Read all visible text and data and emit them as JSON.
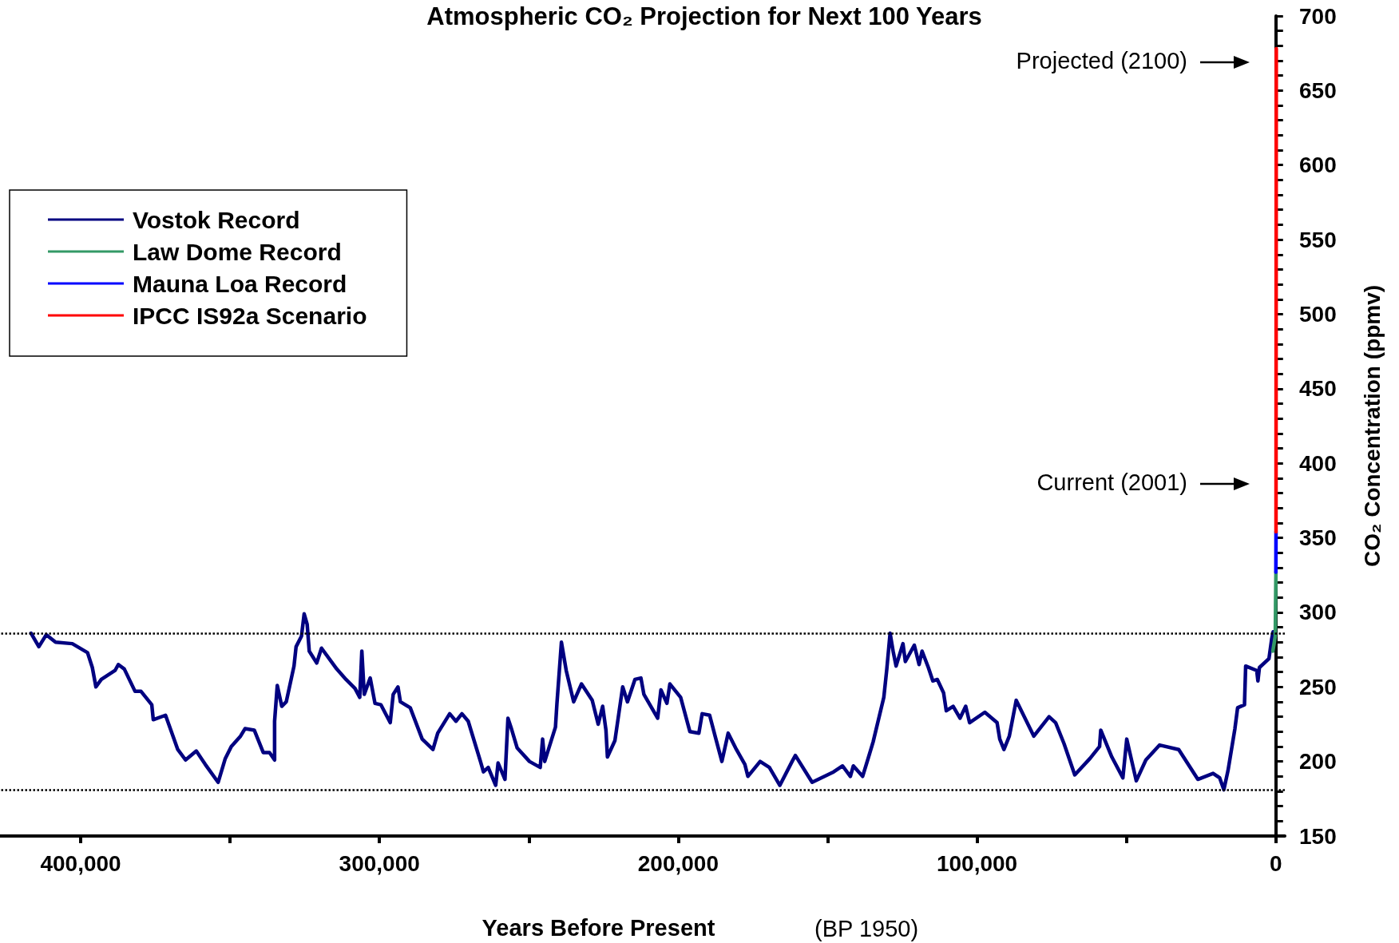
{
  "chart_data": {
    "type": "line",
    "title": "Atmospheric CO₂ Projection for Next 100 Years",
    "xlabel": "Years Before Present",
    "ylabel": "CO₂ Concentration (ppmv)",
    "annotations": [
      "(BP 1950)",
      "Projected (2100)",
      "Current (2001)"
    ],
    "xlim": [
      427000,
      -3000
    ],
    "ylim": [
      150,
      700
    ],
    "xticks": [
      {
        "value": 400000,
        "label": "400,000"
      },
      {
        "value": 350000,
        "label": null
      },
      {
        "value": 300000,
        "label": "300,000"
      },
      {
        "value": 250000,
        "label": null
      },
      {
        "value": 200000,
        "label": "200,000"
      },
      {
        "value": 150000,
        "label": null
      },
      {
        "value": 100000,
        "label": "100,000"
      },
      {
        "value": 50000,
        "label": null
      },
      0
    ],
    "yticks": [
      150,
      {
        "value": 160,
        "label": null
      },
      {
        "value": 170,
        "label": null
      },
      {
        "value": 180,
        "label": null
      },
      {
        "value": 190,
        "label": null
      },
      200,
      {
        "value": 210,
        "label": null
      },
      {
        "value": 220,
        "label": null
      },
      {
        "value": 230,
        "label": null
      },
      {
        "value": 240,
        "label": null
      },
      250,
      {
        "value": 260,
        "label": null
      },
      {
        "value": 270,
        "label": null
      },
      {
        "value": 280,
        "label": null
      },
      {
        "value": 290,
        "label": null
      },
      300,
      {
        "value": 310,
        "label": null
      },
      {
        "value": 320,
        "label": null
      },
      {
        "value": 330,
        "label": null
      },
      {
        "value": 340,
        "label": null
      },
      350,
      {
        "value": 360,
        "label": null
      },
      {
        "value": 370,
        "label": null
      },
      {
        "value": 380,
        "label": null
      },
      {
        "value": 390,
        "label": null
      },
      400,
      {
        "value": 410,
        "label": null
      },
      {
        "value": 420,
        "label": null
      },
      {
        "value": 430,
        "label": null
      },
      {
        "value": 440,
        "label": null
      },
      450,
      {
        "value": 460,
        "label": null
      },
      {
        "value": 470,
        "label": null
      },
      {
        "value": 480,
        "label": null
      },
      {
        "value": 490,
        "label": null
      },
      500,
      {
        "value": 510,
        "label": null
      },
      {
        "value": 520,
        "label": null
      },
      {
        "value": 530,
        "label": null
      },
      {
        "value": 540,
        "label": null
      },
      550,
      {
        "value": 560,
        "label": null
      },
      {
        "value": 570,
        "label": null
      },
      {
        "value": 580,
        "label": null
      },
      {
        "value": 590,
        "label": null
      },
      600,
      {
        "value": 610,
        "label": null
      },
      {
        "value": 620,
        "label": null
      },
      {
        "value": 630,
        "label": null
      },
      {
        "value": 640,
        "label": null
      },
      650,
      {
        "value": 660,
        "label": null
      },
      {
        "value": 670,
        "label": null
      },
      {
        "value": 680,
        "label": null
      },
      {
        "value": 690,
        "label": null
      },
      700
    ],
    "ref_lines": [
      {
        "axis": "y",
        "value": 286,
        "color": "#000000",
        "line_style": "dotted"
      },
      {
        "axis": "y",
        "value": 181,
        "color": "#000000",
        "line_style": "dotted"
      }
    ],
    "legend": "top left",
    "grid": false,
    "marker": "none",
    "line_style": "solid",
    "series": [
      {
        "name": "Vostok Record",
        "color": "#000080",
        "x": [
          416600,
          414000,
          411500,
          408400,
          402800,
          397700,
          396100,
          394900,
          393100,
          388500,
          387400,
          385400,
          381800,
          379800,
          376200,
          375700,
          371600,
          367500,
          364900,
          361300,
          358300,
          354000,
          351600,
          349600,
          346500,
          345000,
          341900,
          338900,
          336800,
          335100,
          335100,
          334200,
          332700,
          331200,
          328600,
          327900,
          326100,
          325200,
          324200,
          323500,
          321000,
          319400,
          314300,
          311200,
          308200,
          306600,
          305900,
          305100,
          303100,
          301500,
          299500,
          296400,
          295400,
          293800,
          293000,
          289700,
          285700,
          282100,
          280500,
          276500,
          274400,
          272400,
          270300,
          266200,
          265200,
          263600,
          261100,
          260300,
          258000,
          257000,
          256000,
          253900,
          249800,
          246200,
          245400,
          244700,
          241100,
          240600,
          239100,
          237500,
          235000,
          232400,
          228800,
          226800,
          225300,
          224200,
          223700,
          221200,
          218600,
          217000,
          214500,
          212500,
          211500,
          206900,
          205800,
          203800,
          202800,
          199200,
          196100,
          193100,
          192000,
          189500,
          187400,
          185400,
          183300,
          180800,
          177700,
          176700,
          172600,
          169500,
          166000,
          161900,
          160800,
          155200,
          148000,
          145000,
          142400,
          141400,
          138300,
          136300,
          134800,
          131200,
          130200,
          129100,
          128100,
          127100,
          124800,
          124000,
          121000,
          119400,
          118400,
          116300,
          114800,
          113300,
          111200,
          110300,
          108000,
          105700,
          103800,
          102500,
          97400,
          93300,
          92400,
          91000,
          89200,
          86900,
          81000,
          75900,
          73700,
          70900,
          67300,
          62200,
          59000,
          58600,
          54900,
          51200,
          49900,
          46700,
          43500,
          38900,
          32500,
          26100,
          21000,
          18800,
          17400,
          16000,
          13700,
          12800,
          10500,
          10100,
          6400,
          6000,
          5500,
          2300,
          1400,
          900
        ],
        "values": [
          286,
          277,
          285,
          280,
          279,
          273,
          263,
          250,
          255,
          261,
          265,
          262,
          247,
          247,
          238,
          228,
          231,
          208,
          201,
          207,
          198,
          186,
          202,
          210,
          217,
          222,
          221,
          206,
          206,
          201,
          227,
          251,
          237,
          240,
          264,
          277,
          284,
          299,
          292,
          274,
          266,
          276,
          262,
          255,
          249,
          243,
          274,
          245,
          256,
          239,
          238,
          226,
          245,
          250,
          240,
          236,
          215,
          208,
          219,
          232,
          227,
          232,
          227,
          200,
          193,
          196,
          184,
          199,
          188,
          229,
          223,
          209,
          200,
          196,
          215,
          200,
          223,
          239,
          280,
          261,
          240,
          252,
          241,
          225,
          237,
          221,
          203,
          214,
          250,
          240,
          255,
          256,
          245,
          229,
          248,
          239,
          252,
          243,
          220,
          219,
          232,
          231,
          215,
          200,
          219,
          209,
          198,
          190,
          200,
          196,
          184,
          200,
          204,
          186,
          193,
          197,
          190,
          197,
          190,
          203,
          213,
          243,
          262,
          286,
          274,
          264,
          279,
          267,
          278,
          265,
          274,
          263,
          254,
          255,
          246,
          234,
          237,
          229,
          237,
          226,
          233,
          226,
          215,
          208,
          217,
          241,
          217,
          230,
          226,
          212,
          191,
          202,
          210,
          221,
          203,
          189,
          215,
          187,
          201,
          211,
          208,
          188,
          192,
          189,
          181,
          194,
          222,
          236,
          238,
          264,
          261,
          254,
          263,
          269,
          282,
          287
        ]
      },
      {
        "name": "Law Dome Record",
        "color": "#339966",
        "x": [
          1000,
          200,
          100,
          100,
          -28
        ],
        "values": [
          274,
          284,
          303,
          305,
          327
        ]
      },
      {
        "name": "Mauna Loa Record",
        "color": "#0000ff",
        "x": [
          -8,
          -51
        ],
        "values": [
          327,
          354
        ]
      },
      {
        "name": "IPCC IS92a Scenario",
        "color": "#ff0000",
        "x": [
          -51,
          -150
        ],
        "values": [
          354,
          678
        ]
      }
    ]
  }
}
